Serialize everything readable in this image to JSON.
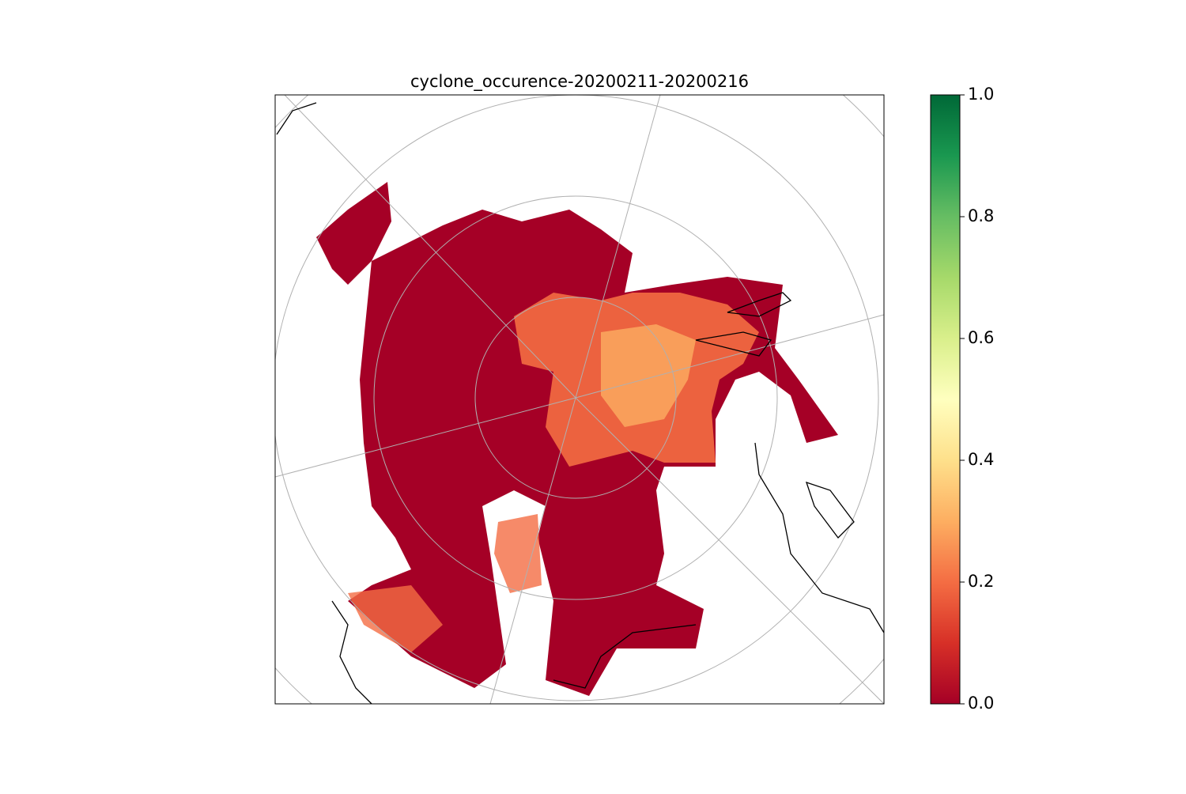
{
  "chart_data": {
    "type": "map",
    "title": "cyclone_occurence-20200211-20200216",
    "colorbar": {
      "clim": [
        0,
        1
      ],
      "ticks": [
        {
          "value": 0,
          "label": "0.0"
        },
        {
          "value": 0.2,
          "label": "0.2"
        },
        {
          "value": 0.4,
          "label": "0.4"
        },
        {
          "value": 0.6,
          "label": "0.6"
        },
        {
          "value": 0.8,
          "label": "0.8"
        },
        {
          "value": 1,
          "label": "1.0"
        }
      ],
      "colormap": [
        "#a50026",
        "#d73027",
        "#f46d43",
        "#fdae61",
        "#fee08b",
        "#ffffbf",
        "#d9ef8b",
        "#a6d96a",
        "#66bd63",
        "#1a9850",
        "#006837"
      ]
    }
  }
}
